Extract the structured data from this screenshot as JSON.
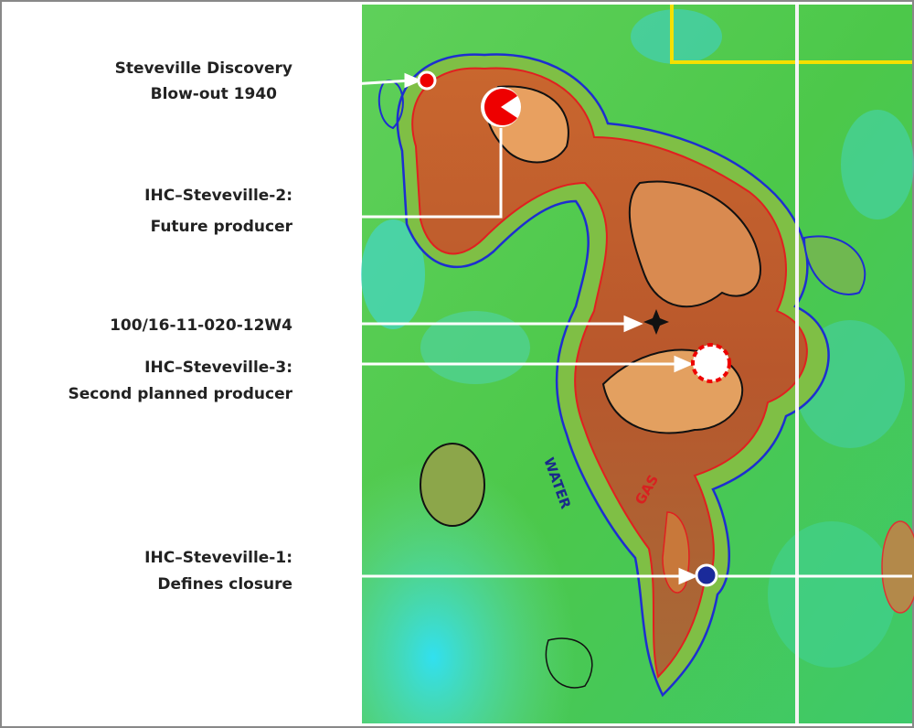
{
  "annotations": [
    {
      "lines": [
        "Steveville Discovery",
        "Blow-out 1940"
      ]
    },
    {
      "lines": [
        "IHC–Steveville-2:",
        "Future producer"
      ]
    },
    {
      "lines": [
        "100/16-11-020-12W4"
      ]
    },
    {
      "lines": [
        "IHC–Steveville-3:",
        "Second planned producer"
      ]
    },
    {
      "lines": [
        "IHC–Steveville-1:",
        "Defines closure"
      ]
    }
  ],
  "map_labels": [
    "WATER",
    "GAS"
  ]
}
